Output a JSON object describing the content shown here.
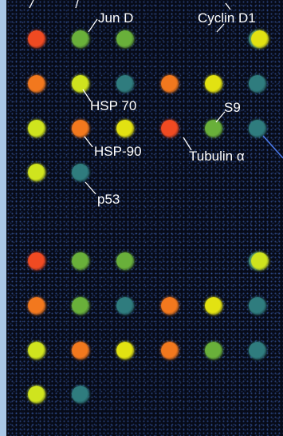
{
  "labels": {
    "jun_d": "Jun D",
    "cyclin_d1": "Cyclin D1",
    "hsp70": "HSP 70",
    "s9": "S9",
    "hsp90": "HSP-90",
    "tubulin": "Tubulin α",
    "p53": "p53"
  },
  "colors": {
    "red": "#f04a22",
    "orange": "#f2781e",
    "yellow": "#e2e212",
    "lime": "#cfe41e",
    "green": "#69b03a",
    "teal": "#2f7c7e",
    "background": "#070b18",
    "border": "#a9c7e6"
  },
  "spot_rows": [
    [
      "red",
      "green",
      "green",
      null,
      null,
      "teal",
      "yellow"
    ],
    [
      "orange",
      "lime",
      "teal",
      "orange",
      "yellow",
      "teal",
      null
    ],
    [
      "lime",
      "orange",
      "yellow",
      "red",
      "green",
      "teal",
      null
    ],
    [
      "lime",
      "teal",
      null,
      null,
      null,
      null,
      null
    ],
    [
      "red",
      "green",
      "green",
      null,
      null,
      "teal",
      "lime"
    ],
    [
      "orange",
      "green",
      "teal",
      "orange",
      "yellow",
      "teal",
      null
    ],
    [
      "lime",
      "orange",
      "yellow",
      "orange",
      "green",
      "teal",
      null
    ],
    [
      "lime",
      "teal",
      null,
      null,
      null,
      null,
      null
    ]
  ]
}
